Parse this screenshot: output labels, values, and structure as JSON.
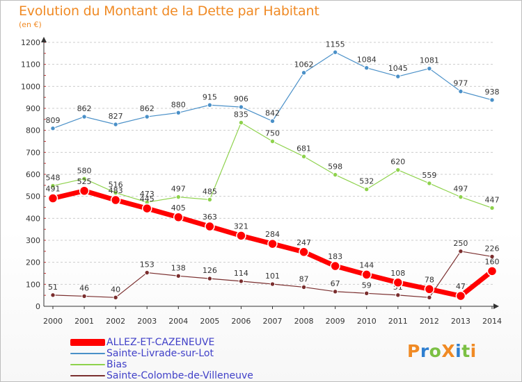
{
  "header": {
    "title": "Evolution du Montant de la Dette par Habitant",
    "subtitle": "(en €)"
  },
  "logo": {
    "text": "ProXiti"
  },
  "colors": {
    "title": "#f08a24",
    "axis": "#333333",
    "grid": "#cccccc",
    "legend_text": "#4040c8",
    "label": "#333333"
  },
  "chart_data": {
    "type": "line",
    "title": "Evolution du Montant de la Dette par Habitant",
    "ylabel": "(en €)",
    "xlabel": "",
    "x": [
      "2000",
      "2001",
      "2002",
      "2003",
      "2004",
      "2005",
      "2006",
      "2007",
      "2008",
      "2009",
      "2010",
      "2011",
      "2012",
      "2013",
      "2014"
    ],
    "ylim": [
      0,
      1200
    ],
    "yticks": [
      "0",
      "100",
      "200",
      "300",
      "400",
      "500",
      "600",
      "700",
      "800",
      "900",
      "1000",
      "1100",
      "1200"
    ],
    "grid": "horizontal dashed",
    "legend_position": "bottom-left",
    "series": [
      {
        "name": "ALLEZ-ET-CAZENEUVE",
        "color": "#ff0000",
        "thick": true,
        "values": [
          491,
          525,
          483,
          445,
          405,
          363,
          321,
          284,
          247,
          183,
          144,
          108,
          78,
          47,
          160
        ]
      },
      {
        "name": "Sainte-Livrade-sur-Lot",
        "color": "#4a90c8",
        "thick": false,
        "values": [
          809,
          862,
          827,
          862,
          880,
          915,
          906,
          842,
          1062,
          1155,
          1084,
          1045,
          1081,
          977,
          938
        ]
      },
      {
        "name": "Bias",
        "color": "#8ed24c",
        "thick": false,
        "values": [
          548,
          580,
          516,
          473,
          497,
          485,
          835,
          750,
          681,
          598,
          532,
          620,
          559,
          497,
          447
        ]
      },
      {
        "name": "Sainte-Colombe-de-Villeneuve",
        "color": "#7a2e2e",
        "thick": false,
        "values": [
          51,
          46,
          40,
          153,
          138,
          126,
          114,
          101,
          87,
          67,
          59,
          51,
          40,
          250,
          226
        ]
      }
    ]
  }
}
